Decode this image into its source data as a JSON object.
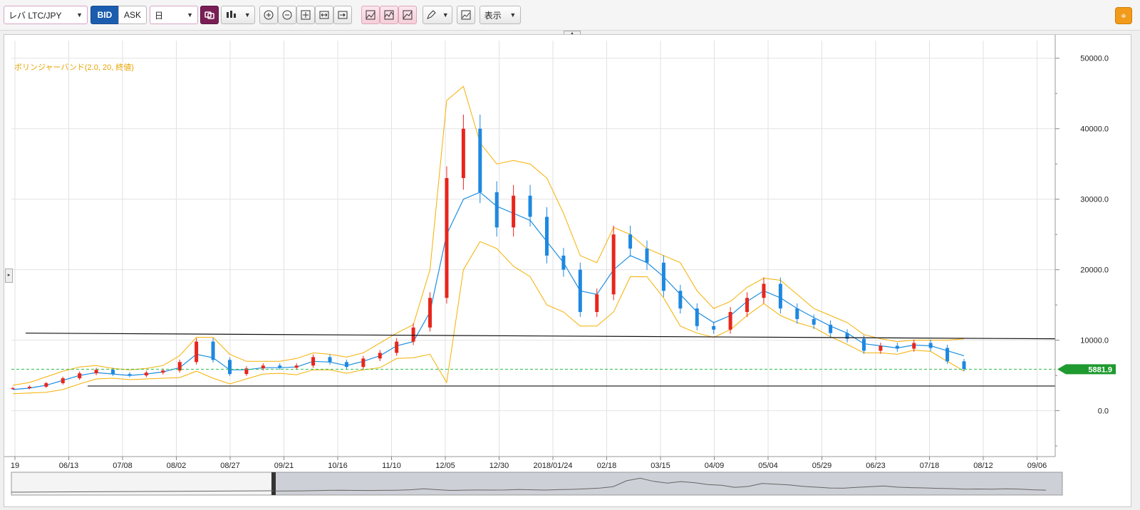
{
  "toolbar": {
    "pair": "レバ LTC/JPY",
    "bid": "BID",
    "ask": "ASK",
    "period": "日",
    "display_menu": "表示"
  },
  "indicator_label": "ボリンジャーバンド(2.0, 20, 終値)",
  "price_marker": "5881.9",
  "chart_data": {
    "type": "candlestick",
    "y_ticks": [
      "50000.0",
      "40000.0",
      "30000.0",
      "20000.0",
      "10000.0",
      "0.0"
    ],
    "y_values": [
      50000,
      40000,
      30000,
      20000,
      10000,
      0
    ],
    "ylim": [
      -5500,
      52500
    ],
    "x_ticks": [
      "19",
      "06/13",
      "07/08",
      "08/02",
      "08/27",
      "09/21",
      "10/16",
      "11/10",
      "12/05",
      "12/30",
      "2018/01/24",
      "02/18",
      "03/15",
      "04/09",
      "05/04",
      "05/29",
      "06/23",
      "07/18",
      "08/12",
      "09/06"
    ],
    "close_series": [
      3200,
      3400,
      3900,
      4600,
      5300,
      5800,
      5200,
      5000,
      5400,
      5700,
      6900,
      9800,
      7200,
      5200,
      6000,
      6400,
      6100,
      6400,
      7600,
      6900,
      6200,
      7400,
      8200,
      9800,
      11800,
      16000,
      33000,
      40000,
      31000,
      26000,
      30500,
      27500,
      22000,
      20000,
      14000,
      16500,
      25000,
      23000,
      21000,
      17000,
      14500,
      12000,
      11500,
      14000,
      16000,
      18000,
      14500,
      13000,
      12200,
      11000,
      10200,
      8500,
      9200,
      8800,
      9600,
      8900,
      7000,
      5881.9
    ],
    "mid_band": [
      3000,
      3200,
      3600,
      4300,
      5000,
      5400,
      5200,
      5000,
      5200,
      5500,
      6100,
      8000,
      7500,
      5800,
      5800,
      6100,
      6100,
      6200,
      7000,
      6900,
      6400,
      7000,
      7800,
      9200,
      9800,
      14000,
      25000,
      30000,
      31000,
      29000,
      28000,
      27000,
      24000,
      21000,
      17000,
      16500,
      20000,
      22000,
      21000,
      19000,
      16500,
      14000,
      12500,
      13500,
      15500,
      17000,
      16000,
      14500,
      13200,
      12000,
      11000,
      9500,
      9200,
      8900,
      9300,
      9200,
      8500,
      7800
    ],
    "upper_band": [
      3600,
      4000,
      4800,
      5600,
      6200,
      6400,
      6000,
      5800,
      6000,
      6400,
      7800,
      10400,
      10400,
      8000,
      7000,
      7000,
      7000,
      7400,
      8200,
      8000,
      7600,
      8200,
      9600,
      11000,
      12200,
      20000,
      44000,
      46000,
      38000,
      35000,
      35500,
      35000,
      33000,
      28000,
      22000,
      21000,
      26000,
      25000,
      23000,
      22000,
      21000,
      17000,
      14500,
      15500,
      17500,
      18800,
      18500,
      16500,
      14500,
      13500,
      12500,
      10800,
      10200,
      9800,
      10000,
      10000,
      10000,
      10200
    ],
    "lower_band": [
      2400,
      2500,
      2600,
      3000,
      3800,
      4500,
      4600,
      4400,
      4500,
      4600,
      4700,
      5600,
      4600,
      3800,
      4500,
      5200,
      5300,
      5100,
      5800,
      5800,
      5300,
      5800,
      6100,
      7400,
      7500,
      8000,
      4000,
      20000,
      24000,
      23000,
      20500,
      19000,
      15000,
      14000,
      12000,
      12000,
      14000,
      19000,
      19000,
      16000,
      12000,
      11000,
      10400,
      11500,
      13500,
      15200,
      13500,
      12500,
      11800,
      10500,
      9400,
      8200,
      8200,
      8000,
      8600,
      8400,
      7000,
      5600
    ],
    "support_line": 3500,
    "resistance_line": [
      11000,
      10200
    ]
  }
}
